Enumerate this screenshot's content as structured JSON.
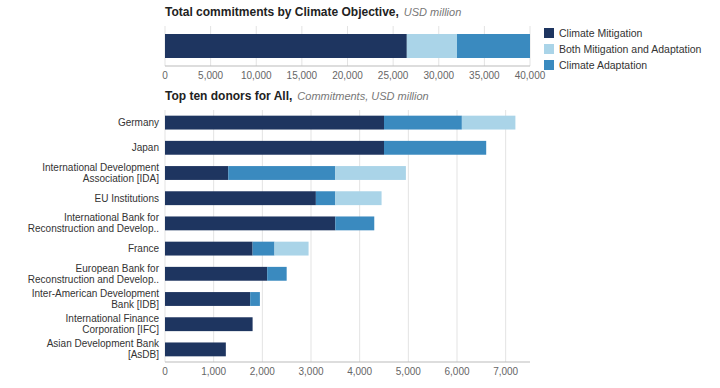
{
  "chart_data": [
    {
      "type": "bar",
      "orientation": "horizontal",
      "stacked": true,
      "title": "Total commitments by Climate Objective,",
      "subtitle": "USD million",
      "categories": [
        null
      ],
      "series": [
        {
          "name": "Climate Mitigation",
          "color": "#1e3560",
          "values": [
            26500
          ]
        },
        {
          "name": "Both Mitigation and Adaptation",
          "color": "#aad4e8",
          "values": [
            5500
          ]
        },
        {
          "name": "Climate Adaptation",
          "color": "#3a8abf",
          "values": [
            8000
          ]
        }
      ],
      "xlim": [
        0,
        40000
      ],
      "xticks": [
        0,
        {
          "value": 5000,
          "label": "5,000"
        },
        {
          "value": 10000,
          "label": "10,000"
        },
        {
          "value": 15000,
          "label": "15,000"
        },
        {
          "value": 20000,
          "label": "20,000"
        },
        {
          "value": 25000,
          "label": "25,000"
        },
        {
          "value": 30000,
          "label": "30,000"
        },
        {
          "value": 35000,
          "label": "35,000"
        },
        {
          "value": 40000,
          "label": "40,000"
        }
      ],
      "grid": true,
      "legend": "right"
    },
    {
      "type": "bar",
      "orientation": "horizontal",
      "stacked": true,
      "title": "Top ten donors for All,",
      "subtitle": "Commitments, USD million",
      "categories": [
        "Germany",
        "Japan",
        "International Development\nAssociation [IDA]",
        "EU Institutions",
        "International Bank for\nReconstruction and Develop..",
        "France",
        "European Bank for\nReconstruction and Develop..",
        "Inter-American Development\nBank [IDB]",
        "International Finance\nCorporation [IFC]",
        "Asian Development Bank\n[AsDB]"
      ],
      "series": [
        {
          "color": "#1e3560",
          "values": [
            4500,
            4500,
            1300,
            3100,
            3500,
            1800,
            2100,
            1750,
            1800,
            1250
          ]
        },
        {
          "color": "#3a8abf",
          "values": [
            1600,
            2100,
            2200,
            400,
            800,
            450,
            400,
            200,
            0,
            0
          ]
        },
        {
          "color": "#aad4e8",
          "values": [
            1100,
            0,
            1450,
            950,
            0,
            700,
            0,
            0,
            0,
            0
          ]
        }
      ],
      "xlim": [
        0,
        7500
      ],
      "xticks": [
        0,
        {
          "value": 1000,
          "label": "1,000"
        },
        {
          "value": 2000,
          "label": "2,000"
        },
        {
          "value": 3000,
          "label": "3,000"
        },
        {
          "value": 4000,
          "label": "4,000"
        },
        {
          "value": 5000,
          "label": "5,000"
        },
        {
          "value": 6000,
          "label": "6,000"
        },
        {
          "value": 7000,
          "label": "7,000"
        }
      ],
      "grid": true
    }
  ]
}
